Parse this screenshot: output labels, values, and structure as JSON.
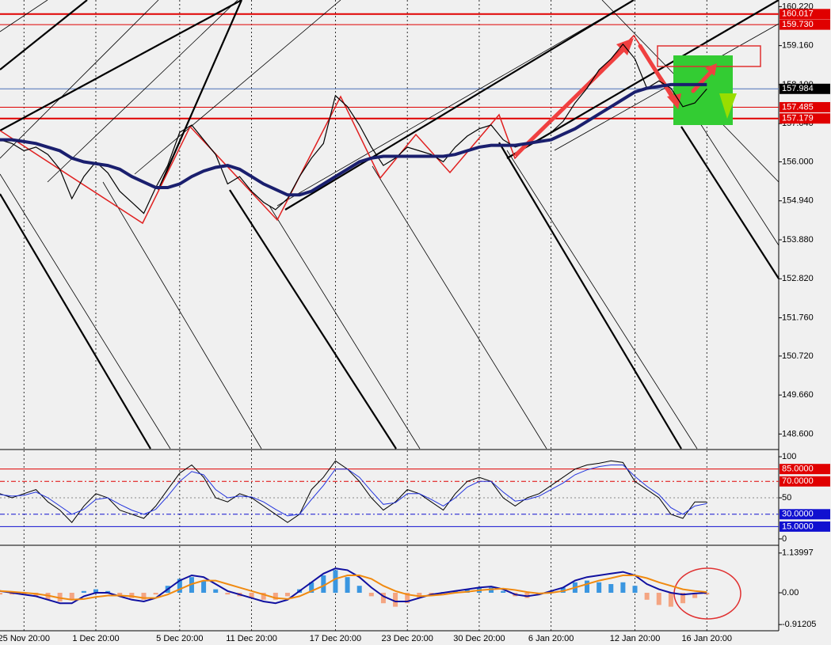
{
  "chart_data": [
    {
      "type": "line",
      "xlim": [
        0,
        65
      ],
      "ylim": [
        148.2,
        160.4
      ],
      "yticks": [
        {
          "value": 160.22,
          "label": "160.220"
        },
        {
          "value": 159.16,
          "label": "159.160"
        },
        {
          "value": 158.1,
          "label": "158.100"
        },
        {
          "value": 157.04,
          "label": "157.040"
        },
        {
          "value": 156,
          "label": "156.000"
        },
        {
          "value": 154.94,
          "label": "154.940"
        },
        {
          "value": 153.88,
          "label": "153.880"
        },
        {
          "value": 152.82,
          "label": "152.820"
        },
        {
          "value": 151.76,
          "label": "151.760"
        },
        {
          "value": 150.72,
          "label": "150.720"
        },
        {
          "value": 149.66,
          "label": "149.660"
        },
        {
          "value": 148.6,
          "label": "148.600"
        }
      ],
      "levels": [
        {
          "value": 160.017,
          "color": "#e00000",
          "width": 2
        },
        {
          "value": 159.73,
          "label": "159.730",
          "color": "#e00000",
          "width": 1
        },
        {
          "value": 157.984,
          "color": "#000000",
          "line_color": "#4a6fb5",
          "width": 1
        },
        {
          "value": 157.485,
          "color": "#e00000",
          "width": 1
        },
        {
          "value": 157.179,
          "color": "#e00000",
          "width": 2
        }
      ],
      "series": [
        {
          "color": "#000000",
          "width": 1.2,
          "values": [
            156.6,
            156.5,
            156.3,
            156.4,
            156.2,
            155.8,
            155.0,
            155.6,
            156.0,
            155.7,
            155.2,
            154.9,
            154.6,
            155.3,
            155.9,
            156.8,
            157.0,
            156.6,
            156.2,
            155.4,
            155.6,
            155.2,
            154.9,
            154.7,
            155.0,
            155.6,
            156.1,
            156.5,
            157.8,
            157.5,
            157.0,
            156.4,
            155.9,
            156.1,
            156.4,
            156.3,
            156.2,
            156.0,
            156.4,
            156.7,
            156.9,
            157.0,
            156.6,
            156.4,
            156.5,
            156.6,
            156.8,
            157.1,
            157.6,
            158.0,
            158.5,
            158.8,
            159.2,
            158.8,
            158.0,
            158.2,
            158.0,
            157.5,
            157.6,
            157.984
          ]
        },
        {
          "color": "#1a1f6e",
          "width": 4,
          "values": [
            156.6,
            156.6,
            156.55,
            156.5,
            156.4,
            156.3,
            156.1,
            156.0,
            155.95,
            155.9,
            155.8,
            155.6,
            155.45,
            155.3,
            155.3,
            155.4,
            155.6,
            155.75,
            155.85,
            155.9,
            155.8,
            155.6,
            155.4,
            155.25,
            155.1,
            155.1,
            155.2,
            155.4,
            155.6,
            155.8,
            156.0,
            156.1,
            156.15,
            156.15,
            156.15,
            156.15,
            156.15,
            156.15,
            156.2,
            156.3,
            156.4,
            156.45,
            156.45,
            156.45,
            156.5,
            156.55,
            156.6,
            156.75,
            156.9,
            157.1,
            157.3,
            157.5,
            157.7,
            157.9,
            158.0,
            158.05,
            158.1,
            158.1,
            158.1,
            158.1
          ]
        }
      ]
    },
    {
      "type": "line",
      "xlim": [
        0,
        65
      ],
      "ylim": [
        -6.8,
        107.8
      ],
      "yticks": [
        100,
        50,
        0
      ],
      "levels": [
        {
          "value": 85,
          "label": "85.0000",
          "color": "#e00000",
          "dash": "none"
        },
        {
          "value": 70,
          "label": "70.0000",
          "color": "#e00000",
          "dash": "6 3 2 3"
        },
        {
          "value": 50,
          "color": "#888888",
          "dash": "2 3",
          "nolabel": true
        },
        {
          "value": 30,
          "label": "30.0000",
          "color": "#1010d0",
          "dash": "6 3 2 3"
        },
        {
          "value": 15,
          "label": "15.0000",
          "color": "#1010d0",
          "dash": "none"
        }
      ],
      "series": [
        {
          "color": "#000000",
          "width": 1,
          "values": [
            55,
            50,
            55,
            60,
            45,
            35,
            20,
            40,
            55,
            50,
            35,
            30,
            25,
            40,
            60,
            80,
            90,
            75,
            50,
            45,
            55,
            50,
            40,
            30,
            20,
            30,
            60,
            75,
            95,
            85,
            70,
            50,
            35,
            45,
            60,
            55,
            45,
            35,
            55,
            70,
            75,
            70,
            50,
            40,
            50,
            55,
            65,
            75,
            85,
            90,
            92,
            95,
            93,
            70,
            60,
            50,
            30,
            25,
            45,
            45
          ]
        },
        {
          "color": "#2233dd",
          "width": 1,
          "values": [
            54,
            52,
            53,
            57,
            50,
            40,
            30,
            36,
            48,
            50,
            42,
            35,
            30,
            36,
            52,
            70,
            82,
            78,
            60,
            50,
            52,
            51,
            45,
            36,
            28,
            30,
            48,
            65,
            85,
            85,
            75,
            58,
            42,
            44,
            55,
            55,
            48,
            40,
            50,
            63,
            70,
            70,
            57,
            46,
            48,
            52,
            60,
            68,
            78,
            84,
            88,
            90,
            90,
            76,
            64,
            54,
            38,
            30,
            40,
            43
          ]
        }
      ]
    },
    {
      "type": "line",
      "xlim": [
        0,
        65
      ],
      "ylim": [
        -1.09,
        1.34
      ],
      "yticks": [
        1.13997,
        {
          "value": 0,
          "label": "0.00"
        },
        -0.91205
      ],
      "xticks": [
        {
          "value": 2,
          "label": "25 Nov 20:00"
        },
        {
          "value": 8,
          "label": "1 Dec 20:00"
        },
        {
          "value": 15,
          "label": "5 Dec 20:00"
        },
        {
          "value": 21,
          "label": "11 Dec 20:00"
        },
        {
          "value": 28,
          "label": "17 Dec 20:00"
        },
        {
          "value": 34,
          "label": "23 Dec 20:00"
        },
        {
          "value": 40,
          "label": "30 Dec 20:00"
        },
        {
          "value": 46,
          "label": "6 Jan 20:00"
        },
        {
          "value": 53,
          "label": "12 Jan 20:00"
        },
        {
          "value": 59,
          "label": "16 Jan 20:00"
        }
      ],
      "series": [
        {
          "kind": "bar",
          "color": "#3a96e0",
          "color_down": "#f4a582",
          "values": [
            -0.05,
            -0.05,
            -0.05,
            -0.1,
            -0.2,
            -0.25,
            -0.2,
            0.05,
            0.1,
            0.05,
            -0.1,
            -0.15,
            -0.2,
            -0.05,
            0.2,
            0.4,
            0.45,
            0.35,
            0.1,
            -0.05,
            -0.1,
            -0.15,
            -0.2,
            -0.2,
            -0.1,
            0.1,
            0.3,
            0.5,
            0.65,
            0.45,
            0.2,
            -0.1,
            -0.3,
            -0.4,
            -0.3,
            -0.15,
            -0.05,
            0.02,
            0.05,
            0.1,
            0.15,
            0.15,
            0.05,
            -0.1,
            -0.15,
            -0.05,
            0.05,
            0.15,
            0.3,
            0.35,
            0.3,
            0.25,
            0.3,
            0.2,
            -0.2,
            -0.35,
            -0.4,
            -0.3,
            -0.15,
            -0.05
          ]
        },
        {
          "color": "#1010a0",
          "width": 2,
          "values": [
            0.05,
            0.0,
            -0.05,
            -0.1,
            -0.2,
            -0.3,
            -0.3,
            -0.1,
            0.0,
            0.0,
            -0.1,
            -0.2,
            -0.25,
            -0.15,
            0.1,
            0.35,
            0.5,
            0.45,
            0.25,
            0.05,
            -0.05,
            -0.15,
            -0.25,
            -0.3,
            -0.2,
            0.05,
            0.3,
            0.55,
            0.7,
            0.65,
            0.45,
            0.15,
            -0.1,
            -0.25,
            -0.25,
            -0.15,
            -0.05,
            0.0,
            0.05,
            0.1,
            0.15,
            0.18,
            0.1,
            -0.05,
            -0.1,
            -0.05,
            0.05,
            0.15,
            0.35,
            0.45,
            0.5,
            0.55,
            0.6,
            0.5,
            0.25,
            0.1,
            0.0,
            -0.05,
            -0.02,
            0.0
          ]
        },
        {
          "color": "#f08a10",
          "width": 2,
          "values": [
            0.05,
            0.03,
            0.0,
            -0.03,
            -0.08,
            -0.15,
            -0.2,
            -0.18,
            -0.12,
            -0.08,
            -0.08,
            -0.1,
            -0.15,
            -0.15,
            -0.05,
            0.1,
            0.25,
            0.35,
            0.35,
            0.25,
            0.15,
            0.05,
            -0.05,
            -0.15,
            -0.18,
            -0.1,
            0.05,
            0.2,
            0.4,
            0.5,
            0.5,
            0.4,
            0.2,
            0.05,
            -0.05,
            -0.1,
            -0.08,
            -0.05,
            0.0,
            0.03,
            0.07,
            0.1,
            0.12,
            0.08,
            0.02,
            -0.02,
            0.0,
            0.05,
            0.15,
            0.25,
            0.35,
            0.42,
            0.5,
            0.5,
            0.42,
            0.3,
            0.2,
            0.1,
            0.05,
            0.02
          ]
        }
      ]
    }
  ]
}
